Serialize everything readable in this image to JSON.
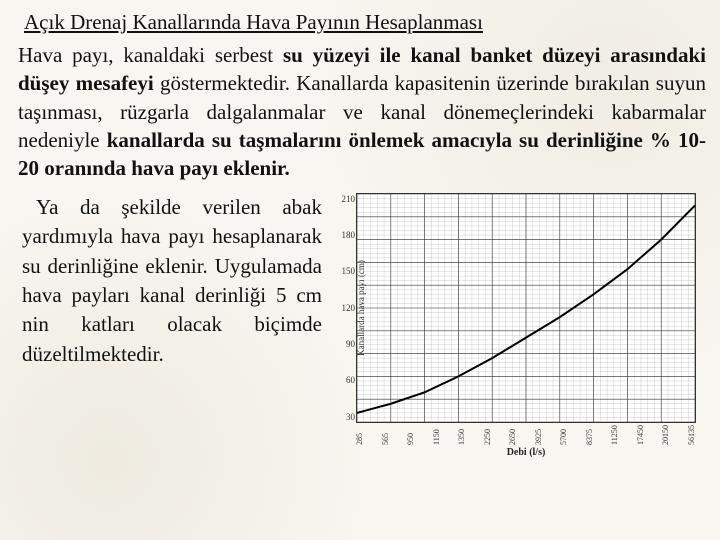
{
  "title": "Açık Drenaj Kanallarında Hava Payının Hesaplanması",
  "para1_prefix": "Hava payı, kanaldaki serbest ",
  "para1_bold1": "su yüzeyi ile kanal banket düzeyi arasındaki düşey mesafeyi",
  "para1_mid": " göstermektedir. Kanallarda kapasitenin üzerinde bırakılan suyun taşınması, rüzgarla dalgalanmalar ve kanal dönemeçlerindeki kabarmalar nedeniyle ",
  "para1_bold2": "kanallarda su taşmalarını önlemek amacıyla su derinliğine % 10-20 oranında hava payı eklenir.",
  "para2": "Ya da şekilde verilen abak yardımıyla hava payı hesaplanarak su derinliğine eklenir. Uygulamada hava payları kanal derinliği 5 cm nin katları olacak biçimde düzeltilmektedir.",
  "chart": {
    "type": "line",
    "xlabel": "Debi (l/s)",
    "ylabel": "Kanallarda hava payı (cm)",
    "ylim": [
      30,
      210
    ],
    "ytick_step": 30,
    "yticks": [
      "210",
      "180",
      "150",
      "120",
      "90",
      "60",
      "30"
    ],
    "xticks": [
      "285",
      "565",
      "950",
      "1150",
      "1350",
      "2250",
      "2650",
      "3925",
      "5700",
      "8375",
      "11250",
      "17450",
      "20150",
      "56135"
    ],
    "curve": [
      {
        "x": 0.0,
        "y": 0.96
      },
      {
        "x": 0.1,
        "y": 0.92
      },
      {
        "x": 0.2,
        "y": 0.87
      },
      {
        "x": 0.3,
        "y": 0.8
      },
      {
        "x": 0.4,
        "y": 0.72
      },
      {
        "x": 0.5,
        "y": 0.63
      },
      {
        "x": 0.6,
        "y": 0.54
      },
      {
        "x": 0.7,
        "y": 0.44
      },
      {
        "x": 0.8,
        "y": 0.33
      },
      {
        "x": 0.9,
        "y": 0.2
      },
      {
        "x": 1.0,
        "y": 0.05
      }
    ],
    "grid_color": "#333333",
    "background_color": "#ffffff",
    "line_color": "#000000",
    "line_width": 2,
    "grid_major_step": 0.1,
    "grid_minor_step": 0.02
  }
}
